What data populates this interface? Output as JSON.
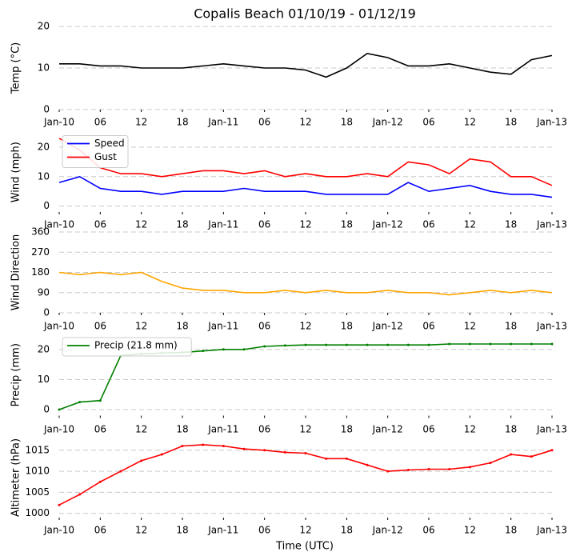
{
  "chart_data": [
    {
      "type": "line",
      "title": "Copalis Beach 01/10/19 - 01/12/19",
      "y_label": "Temp (°C)",
      "color": "#000000",
      "x": [
        0,
        3,
        6,
        9,
        12,
        15,
        18,
        21,
        24,
        27,
        30,
        33,
        36,
        39,
        42,
        45,
        48,
        51,
        54,
        57,
        60,
        63,
        66,
        69,
        72
      ],
      "values": [
        11,
        11,
        10.5,
        10.5,
        10,
        10,
        10,
        10.5,
        11,
        10.5,
        10,
        10,
        9.5,
        7.8,
        10,
        13.5,
        12.5,
        10.5,
        10.5,
        11,
        10,
        9,
        8.5,
        12,
        13
      ],
      "xlim": [
        0,
        72
      ],
      "ylim": [
        0,
        20
      ],
      "yticks": [
        0,
        10,
        20
      ],
      "grid": true,
      "xticks": [
        {
          "value": 0,
          "label": "Jan-10"
        },
        {
          "value": 6,
          "label": "06"
        },
        {
          "value": 12,
          "label": "12"
        },
        {
          "value": 18,
          "label": "18"
        },
        {
          "value": 24,
          "label": "Jan-11"
        },
        {
          "value": 30,
          "label": "06"
        },
        {
          "value": 36,
          "label": "12"
        },
        {
          "value": 42,
          "label": "18"
        },
        {
          "value": 48,
          "label": "Jan-12"
        },
        {
          "value": 54,
          "label": "06"
        },
        {
          "value": 60,
          "label": "12"
        },
        {
          "value": 66,
          "label": "18"
        },
        {
          "value": 72,
          "label": "Jan-13"
        }
      ]
    },
    {
      "type": "line",
      "y_label": "Wind (mph)",
      "legend": "upper left",
      "x": [
        0,
        3,
        6,
        9,
        12,
        15,
        18,
        21,
        24,
        27,
        30,
        33,
        36,
        39,
        42,
        45,
        48,
        51,
        54,
        57,
        60,
        63,
        66,
        69,
        72
      ],
      "series": [
        {
          "name": "Speed",
          "color": "#0000ff",
          "values": [
            8,
            10,
            6,
            5,
            5,
            4,
            5,
            5,
            5,
            6,
            5,
            5,
            5,
            4,
            4,
            4,
            4,
            8,
            5,
            6,
            7,
            5,
            4,
            4,
            3
          ]
        },
        {
          "name": "Gust",
          "color": "#ff0000",
          "values": [
            23,
            19,
            13,
            11,
            11,
            10,
            11,
            12,
            12,
            11,
            12,
            10,
            11,
            10,
            10,
            11,
            10,
            15,
            14,
            11,
            16,
            15,
            10,
            10,
            7
          ]
        }
      ],
      "xlim": [
        0,
        72
      ],
      "ylim": [
        -2,
        25
      ],
      "yticks": [
        0,
        10,
        20
      ],
      "grid": true,
      "xticks": [
        {
          "value": 0,
          "label": "Jan-10"
        },
        {
          "value": 6,
          "label": "06"
        },
        {
          "value": 12,
          "label": "12"
        },
        {
          "value": 18,
          "label": "18"
        },
        {
          "value": 24,
          "label": "Jan-11"
        },
        {
          "value": 30,
          "label": "06"
        },
        {
          "value": 36,
          "label": "12"
        },
        {
          "value": 42,
          "label": "18"
        },
        {
          "value": 48,
          "label": "Jan-12"
        },
        {
          "value": 54,
          "label": "06"
        },
        {
          "value": 60,
          "label": "12"
        },
        {
          "value": 66,
          "label": "18"
        },
        {
          "value": 72,
          "label": "Jan-13"
        }
      ]
    },
    {
      "type": "line",
      "y_label": "Wind Direction",
      "color": "#ffa500",
      "x": [
        0,
        3,
        6,
        9,
        12,
        15,
        18,
        21,
        24,
        27,
        30,
        33,
        36,
        39,
        42,
        45,
        48,
        51,
        54,
        57,
        60,
        63,
        66,
        69,
        72
      ],
      "values": [
        180,
        170,
        180,
        170,
        180,
        140,
        110,
        100,
        100,
        90,
        90,
        100,
        90,
        100,
        90,
        90,
        100,
        90,
        90,
        80,
        90,
        100,
        90,
        100,
        90
      ],
      "xlim": [
        0,
        72
      ],
      "ylim": [
        0,
        360
      ],
      "yticks": [
        0,
        90,
        180,
        270,
        360
      ],
      "grid": true,
      "xticks": [
        {
          "value": 0,
          "label": "Jan-10"
        },
        {
          "value": 6,
          "label": "06"
        },
        {
          "value": 12,
          "label": "12"
        },
        {
          "value": 18,
          "label": "18"
        },
        {
          "value": 24,
          "label": "Jan-11"
        },
        {
          "value": 30,
          "label": "06"
        },
        {
          "value": 36,
          "label": "12"
        },
        {
          "value": 42,
          "label": "18"
        },
        {
          "value": 48,
          "label": "Jan-12"
        },
        {
          "value": 54,
          "label": "06"
        },
        {
          "value": 60,
          "label": "12"
        },
        {
          "value": 66,
          "label": "18"
        },
        {
          "value": 72,
          "label": "Jan-13"
        }
      ]
    },
    {
      "type": "line",
      "y_label": "Precip (mm)",
      "legend": "upper left",
      "markers": true,
      "x": [
        0,
        3,
        6,
        9,
        12,
        15,
        18,
        21,
        24,
        27,
        30,
        33,
        36,
        39,
        42,
        45,
        48,
        51,
        54,
        57,
        60,
        63,
        66,
        69,
        72
      ],
      "series": [
        {
          "name": "Precip (21.8 mm)",
          "color": "#008000",
          "values": [
            0,
            2.5,
            3,
            18,
            18.5,
            18.8,
            19,
            19.5,
            20,
            20,
            21,
            21.3,
            21.5,
            21.5,
            21.5,
            21.5,
            21.5,
            21.5,
            21.5,
            21.8,
            21.8,
            21.8,
            21.8,
            21.8,
            21.8
          ]
        }
      ],
      "xlim": [
        0,
        72
      ],
      "ylim": [
        -2,
        25
      ],
      "yticks": [
        0,
        10,
        20
      ],
      "grid": true,
      "xticks": [
        {
          "value": 0,
          "label": "Jan-10"
        },
        {
          "value": 6,
          "label": "06"
        },
        {
          "value": 12,
          "label": "12"
        },
        {
          "value": 18,
          "label": "18"
        },
        {
          "value": 24,
          "label": "Jan-11"
        },
        {
          "value": 30,
          "label": "06"
        },
        {
          "value": 36,
          "label": "12"
        },
        {
          "value": 42,
          "label": "18"
        },
        {
          "value": 48,
          "label": "Jan-12"
        },
        {
          "value": 54,
          "label": "06"
        },
        {
          "value": 60,
          "label": "12"
        },
        {
          "value": 66,
          "label": "18"
        },
        {
          "value": 72,
          "label": "Jan-13"
        }
      ]
    },
    {
      "type": "line",
      "y_label": "Altimeter (hPa)",
      "x_label": "Time (UTC)",
      "color": "#ff0000",
      "markers": true,
      "x": [
        0,
        3,
        6,
        9,
        12,
        15,
        18,
        21,
        24,
        27,
        30,
        33,
        36,
        39,
        42,
        45,
        48,
        51,
        54,
        57,
        60,
        63,
        66,
        69,
        72
      ],
      "values": [
        1002,
        1004.5,
        1007.5,
        1010,
        1012.5,
        1014,
        1016,
        1016.3,
        1016,
        1015.3,
        1015,
        1014.5,
        1014.3,
        1013,
        1013,
        1011.5,
        1010,
        1010.3,
        1010.5,
        1010.5,
        1011,
        1012,
        1014,
        1013.5,
        1015
      ],
      "xlim": [
        0,
        72
      ],
      "ylim": [
        999,
        1018
      ],
      "yticks": [
        1000,
        1005,
        1010,
        1015
      ],
      "grid": true,
      "xticks": [
        {
          "value": 0,
          "label": "Jan-10"
        },
        {
          "value": 6,
          "label": "06"
        },
        {
          "value": 12,
          "label": "12"
        },
        {
          "value": 18,
          "label": "18"
        },
        {
          "value": 24,
          "label": "Jan-11"
        },
        {
          "value": 30,
          "label": "06"
        },
        {
          "value": 36,
          "label": "12"
        },
        {
          "value": 42,
          "label": "18"
        },
        {
          "value": 48,
          "label": "Jan-12"
        },
        {
          "value": 54,
          "label": "06"
        },
        {
          "value": 60,
          "label": "12"
        },
        {
          "value": 66,
          "label": "18"
        },
        {
          "value": 72,
          "label": "Jan-13"
        }
      ]
    }
  ]
}
